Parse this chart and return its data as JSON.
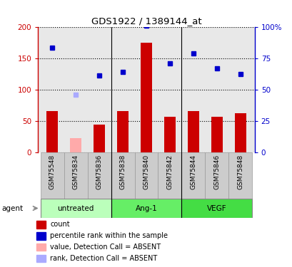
{
  "title": "GDS1922 / 1389144_at",
  "samples": [
    "GSM75548",
    "GSM75834",
    "GSM75836",
    "GSM75838",
    "GSM75840",
    "GSM75842",
    "GSM75844",
    "GSM75846",
    "GSM75848"
  ],
  "groups": [
    {
      "label": "untreated",
      "span": [
        0,
        2
      ],
      "color": "#bbffbb"
    },
    {
      "label": "Ang-1",
      "span": [
        3,
        5
      ],
      "color": "#66ee66"
    },
    {
      "label": "VEGF",
      "span": [
        6,
        8
      ],
      "color": "#44dd44"
    }
  ],
  "count_values": [
    66,
    null,
    44,
    66,
    174,
    57,
    66,
    56,
    62
  ],
  "count_absent": [
    null,
    22,
    null,
    null,
    null,
    null,
    null,
    null,
    null
  ],
  "rank_values": [
    83,
    null,
    61,
    64,
    101,
    71,
    79,
    67,
    62
  ],
  "rank_absent": [
    null,
    46,
    null,
    null,
    null,
    null,
    null,
    null,
    null
  ],
  "ylim_left": [
    0,
    200
  ],
  "ylim_right": [
    0,
    100
  ],
  "yticks_left": [
    0,
    50,
    100,
    150,
    200
  ],
  "yticks_right": [
    0,
    25,
    50,
    75,
    100
  ],
  "ytick_labels_left": [
    "0",
    "50",
    "100",
    "150",
    "200"
  ],
  "ytick_labels_right": [
    "0",
    "25",
    "50",
    "75",
    "100%"
  ],
  "color_count": "#cc0000",
  "color_rank": "#0000cc",
  "color_count_absent": "#ffaaaa",
  "color_rank_absent": "#aaaaff",
  "plot_bg": "#e8e8e8",
  "xtick_cell_color": "#cccccc",
  "legend_items": [
    {
      "color": "#cc0000",
      "label": "count"
    },
    {
      "color": "#0000cc",
      "label": "percentile rank within the sample"
    },
    {
      "color": "#ffaaaa",
      "label": "value, Detection Call = ABSENT"
    },
    {
      "color": "#aaaaff",
      "label": "rank, Detection Call = ABSENT"
    }
  ]
}
